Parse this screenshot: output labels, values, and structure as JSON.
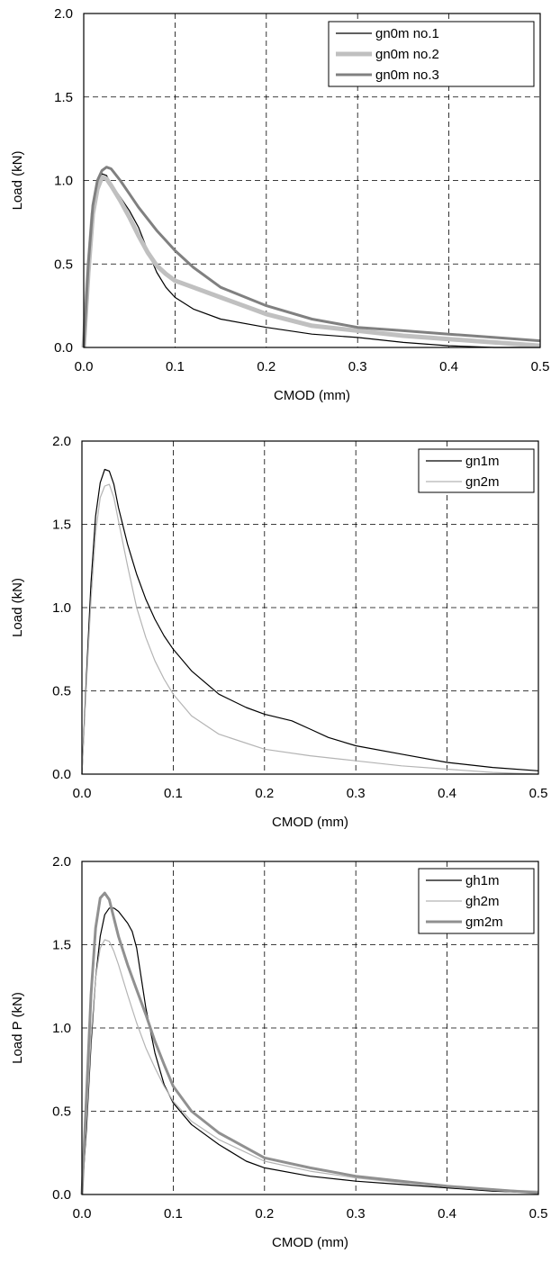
{
  "chart_data": [
    {
      "type": "line",
      "xlabel": "CMOD (mm)",
      "ylabel": "Load (kN)",
      "xlim": [
        0,
        0.5
      ],
      "ylim": [
        0,
        2.0
      ],
      "xticks": [
        "0.0",
        "0.1",
        "0.2",
        "0.3",
        "0.4",
        "0.5"
      ],
      "yticks": [
        "0.0",
        "0.5",
        "1.0",
        "1.5",
        "2.0"
      ],
      "grid": true,
      "legend_position": "top-right",
      "series": [
        {
          "name": "gn0m no.1",
          "color": "#000000",
          "x": [
            0,
            0.005,
            0.01,
            0.015,
            0.02,
            0.025,
            0.03,
            0.04,
            0.05,
            0.06,
            0.07,
            0.08,
            0.09,
            0.1,
            0.12,
            0.15,
            0.2,
            0.25,
            0.3,
            0.35,
            0.4,
            0.45,
            0.5
          ],
          "y": [
            0,
            0.5,
            0.82,
            0.98,
            1.04,
            1.03,
            0.98,
            0.9,
            0.82,
            0.72,
            0.58,
            0.45,
            0.36,
            0.3,
            0.23,
            0.17,
            0.12,
            0.08,
            0.06,
            0.03,
            0.01,
            0.0,
            0.0
          ]
        },
        {
          "name": "gn0m no.2",
          "color": "#c0c0c0",
          "x": [
            0,
            0.005,
            0.01,
            0.015,
            0.02,
            0.025,
            0.03,
            0.04,
            0.05,
            0.06,
            0.07,
            0.08,
            0.09,
            0.1,
            0.12,
            0.15,
            0.2,
            0.25,
            0.3,
            0.35,
            0.4,
            0.45,
            0.5
          ],
          "y": [
            0,
            0.45,
            0.8,
            0.95,
            1.02,
            1.01,
            0.97,
            0.88,
            0.78,
            0.67,
            0.57,
            0.49,
            0.44,
            0.4,
            0.36,
            0.3,
            0.2,
            0.13,
            0.1,
            0.07,
            0.05,
            0.03,
            0.01
          ]
        },
        {
          "name": "gn0m no.3",
          "color": "#808080",
          "x": [
            0,
            0.005,
            0.01,
            0.015,
            0.02,
            0.025,
            0.03,
            0.04,
            0.05,
            0.06,
            0.07,
            0.08,
            0.09,
            0.1,
            0.12,
            0.15,
            0.2,
            0.25,
            0.3,
            0.35,
            0.4,
            0.45,
            0.5
          ],
          "y": [
            0,
            0.5,
            0.85,
            1.0,
            1.06,
            1.08,
            1.07,
            1.0,
            0.92,
            0.84,
            0.77,
            0.7,
            0.64,
            0.58,
            0.48,
            0.36,
            0.25,
            0.17,
            0.12,
            0.1,
            0.08,
            0.06,
            0.04
          ]
        }
      ]
    },
    {
      "type": "line",
      "xlabel": "CMOD (mm)",
      "ylabel": "Load (kN)",
      "xlim": [
        0,
        0.5
      ],
      "ylim": [
        0,
        2.0
      ],
      "xticks": [
        "0.0",
        "0.1",
        "0.2",
        "0.3",
        "0.4",
        "0.5"
      ],
      "yticks": [
        "0.0",
        "0.5",
        "1.0",
        "1.5",
        "2.0"
      ],
      "grid": true,
      "legend_position": "top-right",
      "series": [
        {
          "name": "gn1m",
          "color": "#000000",
          "x": [
            0,
            0.005,
            0.01,
            0.015,
            0.02,
            0.025,
            0.03,
            0.035,
            0.04,
            0.05,
            0.06,
            0.07,
            0.08,
            0.09,
            0.1,
            0.12,
            0.15,
            0.18,
            0.2,
            0.23,
            0.25,
            0.27,
            0.3,
            0.35,
            0.4,
            0.45,
            0.5
          ],
          "y": [
            0,
            0.6,
            1.15,
            1.55,
            1.75,
            1.83,
            1.82,
            1.74,
            1.6,
            1.38,
            1.2,
            1.05,
            0.93,
            0.83,
            0.75,
            0.62,
            0.48,
            0.4,
            0.36,
            0.32,
            0.27,
            0.22,
            0.17,
            0.12,
            0.07,
            0.04,
            0.02
          ]
        },
        {
          "name": "gn2m",
          "color": "#b4b4b4",
          "x": [
            0,
            0.005,
            0.01,
            0.015,
            0.02,
            0.025,
            0.03,
            0.035,
            0.04,
            0.05,
            0.06,
            0.07,
            0.08,
            0.09,
            0.1,
            0.12,
            0.15,
            0.2,
            0.25,
            0.3,
            0.35,
            0.4,
            0.45,
            0.5
          ],
          "y": [
            0,
            0.55,
            1.05,
            1.45,
            1.66,
            1.73,
            1.74,
            1.66,
            1.52,
            1.25,
            1.0,
            0.82,
            0.68,
            0.57,
            0.48,
            0.35,
            0.24,
            0.15,
            0.11,
            0.08,
            0.05,
            0.03,
            0.01,
            0.0
          ]
        }
      ]
    },
    {
      "type": "line",
      "xlabel": "CMOD (mm)",
      "ylabel": "Load P (kN)",
      "xlim": [
        0,
        0.5
      ],
      "ylim": [
        0,
        2.0
      ],
      "xticks": [
        "0.0",
        "0.1",
        "0.2",
        "0.3",
        "0.4",
        "0.5"
      ],
      "yticks": [
        "0.0",
        "0.5",
        "1.0",
        "1.5",
        "2.0"
      ],
      "grid": true,
      "legend_position": "top-right",
      "series": [
        {
          "name": "gh1m",
          "color": "#000000",
          "x": [
            0,
            0.005,
            0.01,
            0.015,
            0.02,
            0.025,
            0.03,
            0.035,
            0.04,
            0.05,
            0.055,
            0.06,
            0.065,
            0.07,
            0.08,
            0.09,
            0.1,
            0.12,
            0.15,
            0.18,
            0.2,
            0.25,
            0.3,
            0.35,
            0.4,
            0.45,
            0.5
          ],
          "y": [
            0,
            0.4,
            0.9,
            1.3,
            1.55,
            1.68,
            1.72,
            1.72,
            1.7,
            1.63,
            1.58,
            1.48,
            1.3,
            1.12,
            0.85,
            0.66,
            0.55,
            0.42,
            0.3,
            0.2,
            0.16,
            0.11,
            0.08,
            0.06,
            0.04,
            0.02,
            0.01
          ]
        },
        {
          "name": "gh2m",
          "color": "#b4b4b4",
          "x": [
            0,
            0.005,
            0.01,
            0.015,
            0.02,
            0.025,
            0.03,
            0.035,
            0.04,
            0.05,
            0.06,
            0.07,
            0.08,
            0.09,
            0.1,
            0.12,
            0.15,
            0.2,
            0.25,
            0.3,
            0.35,
            0.4,
            0.45,
            0.5
          ],
          "y": [
            0,
            0.45,
            0.95,
            1.3,
            1.48,
            1.53,
            1.52,
            1.46,
            1.38,
            1.2,
            1.03,
            0.88,
            0.76,
            0.65,
            0.56,
            0.44,
            0.33,
            0.2,
            0.14,
            0.1,
            0.07,
            0.05,
            0.03,
            0.02
          ]
        },
        {
          "name": "gm2m",
          "color": "#909090",
          "x": [
            0,
            0.005,
            0.01,
            0.015,
            0.02,
            0.025,
            0.03,
            0.035,
            0.04,
            0.05,
            0.06,
            0.07,
            0.08,
            0.09,
            0.1,
            0.12,
            0.15,
            0.2,
            0.25,
            0.3,
            0.35,
            0.4,
            0.45,
            0.5
          ],
          "y": [
            0,
            0.6,
            1.2,
            1.6,
            1.78,
            1.81,
            1.77,
            1.66,
            1.55,
            1.38,
            1.23,
            1.08,
            0.92,
            0.78,
            0.65,
            0.5,
            0.37,
            0.22,
            0.16,
            0.11,
            0.08,
            0.05,
            0.03,
            0.01
          ]
        }
      ]
    }
  ]
}
